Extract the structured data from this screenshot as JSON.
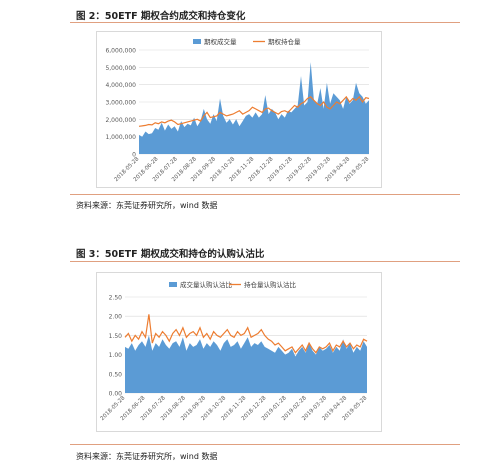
{
  "figure2": {
    "title": "图 2：50ETF 期权合约成交和持仓变化",
    "source": "资料来源：东莞证券研究所，wind 数据"
  },
  "figure3": {
    "title": "图 3：50ETF 期权成交和持仓的认购认沽比",
    "source": "资料来源：东莞证券研究所，wind 数据"
  },
  "colors": {
    "area": "#5b9bd5",
    "line": "#ed7d31",
    "rule": "#e0a080",
    "grid": "#d9d9d9"
  },
  "chart_data": [
    {
      "type": "area",
      "legend_position": "top",
      "grid": true,
      "ylim": [
        0,
        6000000
      ],
      "yticks": [
        "0",
        "1,000,000",
        "2,000,000",
        "3,000,000",
        "4,000,000",
        "5,000,000",
        "6,000,000"
      ],
      "xticks": [
        "2018-05-28",
        "2018-06-28",
        "2018-07-28",
        "2018-08-28",
        "2018-09-28",
        "2018-10-28",
        "2018-11-28",
        "2018-12-28",
        "2019-01-28",
        "2019-02-28",
        "2019-03-28",
        "2019-04-28",
        "2019-05-28"
      ],
      "series": [
        {
          "name": "期权成交量",
          "kind": "area",
          "values": [
            1100000,
            1000000,
            1300000,
            1150000,
            1200000,
            1500000,
            1400000,
            1800000,
            1350000,
            1700000,
            1450000,
            1600000,
            1300000,
            1900000,
            1550000,
            1750000,
            1650000,
            2100000,
            1600000,
            1900000,
            2600000,
            2000000,
            1750000,
            2300000,
            1900000,
            3200000,
            2200000,
            1800000,
            2000000,
            1700000,
            2000000,
            1600000,
            1900000,
            2200000,
            2300000,
            2100000,
            2400000,
            2100000,
            2300000,
            3400000,
            2300000,
            2600000,
            2400000,
            2000000,
            2300000,
            2100000,
            2500000,
            2400000,
            2600000,
            2800000,
            4500000,
            2800000,
            3000000,
            5300000,
            3100000,
            2900000,
            3800000,
            2600000,
            4100000,
            2900000,
            3500000,
            3300000,
            3100000,
            2600000,
            3300000,
            2900000,
            3100000,
            4100000,
            3500000,
            3300000,
            2900000,
            3100000
          ]
        },
        {
          "name": "期权持仓量",
          "kind": "line",
          "values": [
            1600000,
            1620000,
            1650000,
            1700000,
            1680000,
            1800000,
            1750000,
            1850000,
            1800000,
            1900000,
            1950000,
            1850000,
            1700000,
            1750000,
            1800000,
            1850000,
            1900000,
            1950000,
            2000000,
            1900000,
            2200000,
            2400000,
            2100000,
            2150000,
            2200000,
            2400000,
            2300000,
            2200000,
            2250000,
            2300000,
            2400000,
            2500000,
            2300000,
            2400000,
            2500000,
            2700000,
            2600000,
            2500000,
            2400000,
            2600000,
            2650000,
            2500000,
            2400000,
            2300000,
            2450000,
            2500000,
            2400000,
            2600000,
            2800000,
            2700000,
            2900000,
            3000000,
            3200000,
            3300000,
            3100000,
            2900000,
            2800000,
            3000000,
            2700000,
            2600000,
            2800000,
            3000000,
            2900000,
            3100000,
            3300000,
            3000000,
            3200000,
            3100000,
            3300000,
            3000000,
            3250000,
            3200000
          ]
        }
      ]
    },
    {
      "type": "area",
      "legend_position": "top",
      "grid": true,
      "ylim": [
        0,
        2.5
      ],
      "yticks": [
        "0.00",
        "0.50",
        "1.00",
        "1.50",
        "2.00",
        "2.50"
      ],
      "xticks": [
        "2018-05-28",
        "2018-06-28",
        "2018-07-28",
        "2018-08-28",
        "2018-09-28",
        "2018-10-28",
        "2018-11-28",
        "2018-12-28",
        "2019-01-28",
        "2019-02-28",
        "2019-03-28",
        "2019-04-28",
        "2019-05-28"
      ],
      "series": [
        {
          "name": "成交量认购认沽比",
          "kind": "area",
          "values": [
            1.2,
            1.15,
            1.3,
            1.1,
            1.25,
            1.35,
            1.2,
            1.5,
            1.1,
            1.3,
            1.2,
            1.4,
            1.25,
            1.15,
            1.3,
            1.35,
            1.2,
            1.45,
            1.1,
            1.3,
            1.2,
            1.25,
            1.4,
            1.15,
            1.3,
            1.2,
            1.35,
            1.25,
            1.1,
            1.3,
            1.4,
            1.2,
            1.25,
            1.35,
            1.15,
            1.3,
            1.45,
            1.2,
            1.3,
            1.25,
            1.35,
            1.2,
            1.15,
            1.1,
            1.05,
            1.2,
            1.1,
            1.0,
            1.05,
            1.15,
            0.95,
            1.1,
            1.2,
            1.05,
            1.3,
            1.1,
            1.0,
            1.2,
            1.1,
            1.15,
            1.25,
            1.05,
            1.2,
            1.1,
            1.4,
            1.15,
            1.3,
            1.05,
            1.2,
            1.1,
            1.35,
            1.2
          ]
        },
        {
          "name": "持仓量认购认沽比",
          "kind": "line",
          "values": [
            1.45,
            1.55,
            1.35,
            1.5,
            1.4,
            1.6,
            1.45,
            2.05,
            1.3,
            1.55,
            1.45,
            1.6,
            1.5,
            1.35,
            1.55,
            1.65,
            1.5,
            1.7,
            1.45,
            1.55,
            1.6,
            1.5,
            1.7,
            1.45,
            1.55,
            1.4,
            1.6,
            1.5,
            1.45,
            1.55,
            1.65,
            1.5,
            1.45,
            1.6,
            1.5,
            1.55,
            1.7,
            1.45,
            1.5,
            1.55,
            1.65,
            1.5,
            1.4,
            1.35,
            1.25,
            1.3,
            1.2,
            1.1,
            1.15,
            1.2,
            1.05,
            1.15,
            1.25,
            1.1,
            1.3,
            1.15,
            1.05,
            1.2,
            1.15,
            1.2,
            1.3,
            1.1,
            1.25,
            1.2,
            1.35,
            1.2,
            1.3,
            1.15,
            1.25,
            1.2,
            1.4,
            1.35
          ]
        }
      ]
    }
  ]
}
